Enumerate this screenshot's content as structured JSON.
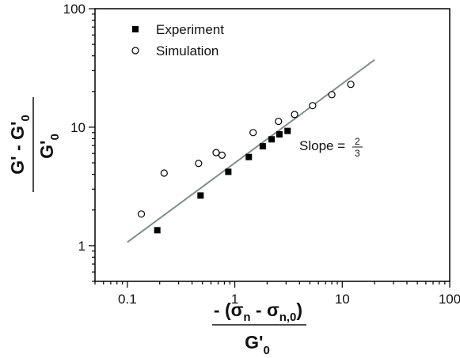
{
  "chart_data": {
    "type": "scatter",
    "x_scale": "log",
    "y_scale": "log",
    "xlim": [
      0.05,
      100
    ],
    "ylim": [
      0.5,
      100
    ],
    "x_ticks": [
      "0.1",
      "1",
      "10",
      "100"
    ],
    "y_ticks": [
      "1",
      "10",
      "100"
    ],
    "xlabel_numerator": "- (σn - σn,0)",
    "xlabel_denominator": "G'0",
    "ylabel_numerator": "G' - G'0",
    "ylabel_denominator": "G'0",
    "annotation": "Slope = 2/3",
    "legend_position": "top-left",
    "series": [
      {
        "name": "Experiment",
        "marker": "filled-square",
        "x": [
          0.19,
          0.48,
          0.87,
          1.35,
          1.82,
          2.2,
          2.6,
          3.1
        ],
        "y": [
          1.35,
          2.65,
          4.2,
          5.6,
          6.9,
          7.9,
          8.7,
          9.3
        ]
      },
      {
        "name": "Simulation",
        "marker": "open-circle",
        "x": [
          0.135,
          0.22,
          0.46,
          0.67,
          0.76,
          1.48,
          2.55,
          3.6,
          5.3,
          8.0,
          12.0
        ],
        "y": [
          1.85,
          4.1,
          4.95,
          6.1,
          5.8,
          9.0,
          11.2,
          12.8,
          15.2,
          18.8,
          23.0
        ]
      }
    ],
    "fit_line": {
      "color": "#7f8f8a",
      "x": [
        0.1,
        20
      ],
      "y": [
        1.07,
        37
      ]
    }
  },
  "legend": {
    "experiment": "Experiment",
    "simulation": "Simulation"
  },
  "slope": {
    "text": "Slope =",
    "numerator": "2",
    "denominator": "3"
  },
  "xlabel": {
    "prefix": "- (σ",
    "sub1": "n",
    "mid": " - σ",
    "sub2": "n,0",
    "suffix": ")",
    "den_main": "G'",
    "den_sub": "0"
  },
  "ylabel": {
    "num_a": "G' - G'",
    "num_sub": "0",
    "den_main": "G'",
    "den_sub": "0"
  }
}
